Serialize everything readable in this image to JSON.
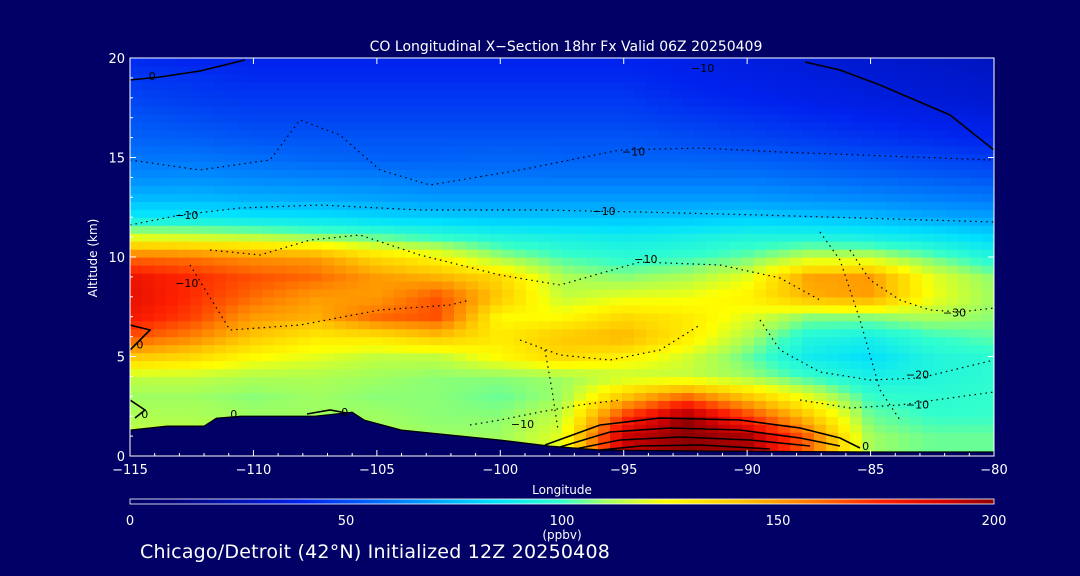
{
  "chart_data": {
    "type": "heatmap",
    "title": "CO Longitudinal X−Section 18hr  Fx Valid 06Z 20250409",
    "xlabel": "Longitude",
    "ylabel": "Altitude (km)",
    "xlim": [
      -115,
      -80
    ],
    "ylim": [
      0,
      20
    ],
    "x_ticks": [
      "−115",
      "−110",
      "−105",
      "−100",
      "−95",
      "−90",
      "−85",
      "−80"
    ],
    "y_ticks": [
      "0",
      "5",
      "10",
      "15",
      "20"
    ],
    "colorbar": {
      "ticks": [
        "0",
        "50",
        "100",
        "150",
        "200"
      ],
      "unit": "(ppbv)",
      "min": 0,
      "max": 200
    },
    "value_grid": {
      "x": [
        -115,
        -112.5,
        -110,
        -107.5,
        -105,
        -102.5,
        -100,
        -97.5,
        -95,
        -92.5,
        -90,
        -87.5,
        -85,
        -82.5,
        -80
      ],
      "y": [
        0,
        1,
        2,
        3,
        4,
        5,
        6,
        7,
        8,
        9,
        10,
        11,
        12,
        13,
        14,
        15,
        16,
        17,
        18,
        19,
        20
      ],
      "z": [
        [
          115,
          115,
          112,
          112,
          112,
          110,
          110,
          120,
          190,
          200,
          195,
          160,
          110,
          105,
          105
        ],
        [
          115,
          115,
          112,
          112,
          112,
          110,
          110,
          120,
          190,
          200,
          195,
          160,
          110,
          105,
          105
        ],
        [
          112,
          112,
          110,
          110,
          110,
          108,
          108,
          115,
          170,
          200,
          170,
          140,
          105,
          100,
          100
        ],
        [
          110,
          110,
          108,
          110,
          108,
          108,
          105,
          110,
          140,
          160,
          140,
          120,
          100,
          98,
          100
        ],
        [
          115,
          115,
          112,
          112,
          110,
          108,
          108,
          110,
          115,
          115,
          110,
          100,
          92,
          95,
          98
        ],
        [
          140,
          135,
          125,
          120,
          115,
          115,
          125,
          135,
          128,
          118,
          105,
          90,
          85,
          95,
          98
        ],
        [
          165,
          155,
          140,
          130,
          132,
          140,
          130,
          140,
          145,
          130,
          112,
          95,
          92,
          100,
          104
        ],
        [
          178,
          168,
          150,
          145,
          160,
          165,
          125,
          125,
          135,
          130,
          120,
          108,
          108,
          112,
          108
        ],
        [
          182,
          172,
          160,
          150,
          150,
          165,
          140,
          115,
          120,
          122,
          128,
          145,
          150,
          122,
          110
        ],
        [
          180,
          172,
          165,
          160,
          150,
          145,
          135,
          112,
          108,
          112,
          120,
          148,
          150,
          120,
          108
        ],
        [
          160,
          158,
          152,
          150,
          135,
          125,
          110,
          102,
          98,
          100,
          105,
          115,
          115,
          105,
          95
        ],
        [
          120,
          118,
          115,
          110,
          105,
          100,
          95,
          92,
          90,
          92,
          95,
          95,
          92,
          88,
          82
        ],
        [
          88,
          88,
          86,
          85,
          82,
          80,
          78,
          78,
          78,
          78,
          80,
          78,
          76,
          72,
          70
        ],
        [
          75,
          75,
          73,
          72,
          70,
          68,
          68,
          68,
          68,
          68,
          68,
          66,
          64,
          62,
          60
        ],
        [
          65,
          66,
          64,
          63,
          62,
          60,
          60,
          60,
          60,
          60,
          60,
          58,
          56,
          54,
          52
        ],
        [
          60,
          60,
          58,
          56,
          55,
          55,
          56,
          55,
          55,
          55,
          54,
          52,
          50,
          48,
          46
        ],
        [
          55,
          54,
          52,
          52,
          52,
          52,
          52,
          52,
          52,
          50,
          48,
          46,
          44,
          42,
          40
        ],
        [
          52,
          50,
          48,
          48,
          48,
          48,
          48,
          48,
          48,
          46,
          44,
          42,
          40,
          38,
          36
        ],
        [
          48,
          46,
          45,
          45,
          45,
          45,
          45,
          45,
          45,
          42,
          40,
          38,
          36,
          34,
          32
        ],
        [
          45,
          44,
          42,
          42,
          42,
          42,
          42,
          42,
          42,
          40,
          38,
          36,
          34,
          32,
          30
        ],
        [
          42,
          40,
          40,
          40,
          40,
          40,
          40,
          40,
          40,
          38,
          36,
          34,
          32,
          30,
          28
        ]
      ]
    },
    "terrain_km": {
      "lon": [
        -115,
        -113.5,
        -112,
        -111.5,
        -110.5,
        -107.5,
        -106,
        -105.5,
        -104,
        -100,
        -98,
        -96,
        -92,
        -85,
        -80
      ],
      "alt": [
        1.3,
        1.5,
        1.5,
        1.9,
        2.0,
        2.0,
        2.2,
        1.8,
        1.3,
        0.8,
        0.5,
        0.3,
        0.25,
        0.2,
        0.2
      ]
    },
    "contour_labels": [
      {
        "text": "0",
        "lon": -114.1,
        "alt": 19.1
      },
      {
        "text": "−10",
        "lon": -91.8,
        "alt": 19.5
      },
      {
        "text": "−10",
        "lon": -94.6,
        "alt": 15.3
      },
      {
        "text": "−10",
        "lon": -112.7,
        "alt": 12.1
      },
      {
        "text": "−10",
        "lon": -95.8,
        "alt": 12.3
      },
      {
        "text": "−10",
        "lon": -94.1,
        "alt": 9.9
      },
      {
        "text": "−10",
        "lon": -112.7,
        "alt": 8.7
      },
      {
        "text": "0",
        "lon": -114.6,
        "alt": 5.6
      },
      {
        "text": "0",
        "lon": -114.4,
        "alt": 2.1
      },
      {
        "text": "0",
        "lon": -110.8,
        "alt": 2.1
      },
      {
        "text": "0",
        "lon": -106.3,
        "alt": 2.2
      },
      {
        "text": "−10",
        "lon": -99.1,
        "alt": 1.6
      },
      {
        "text": "−30",
        "lon": -81.6,
        "alt": 7.2
      },
      {
        "text": "−20",
        "lon": -83.1,
        "alt": 4.1
      },
      {
        "text": "−10",
        "lon": -83.1,
        "alt": 2.6
      },
      {
        "text": "0",
        "lon": -85.2,
        "alt": 0.5
      }
    ]
  },
  "footer": {
    "text": "Chicago/Detroit (42°N) Initialized 12Z 20250408"
  }
}
